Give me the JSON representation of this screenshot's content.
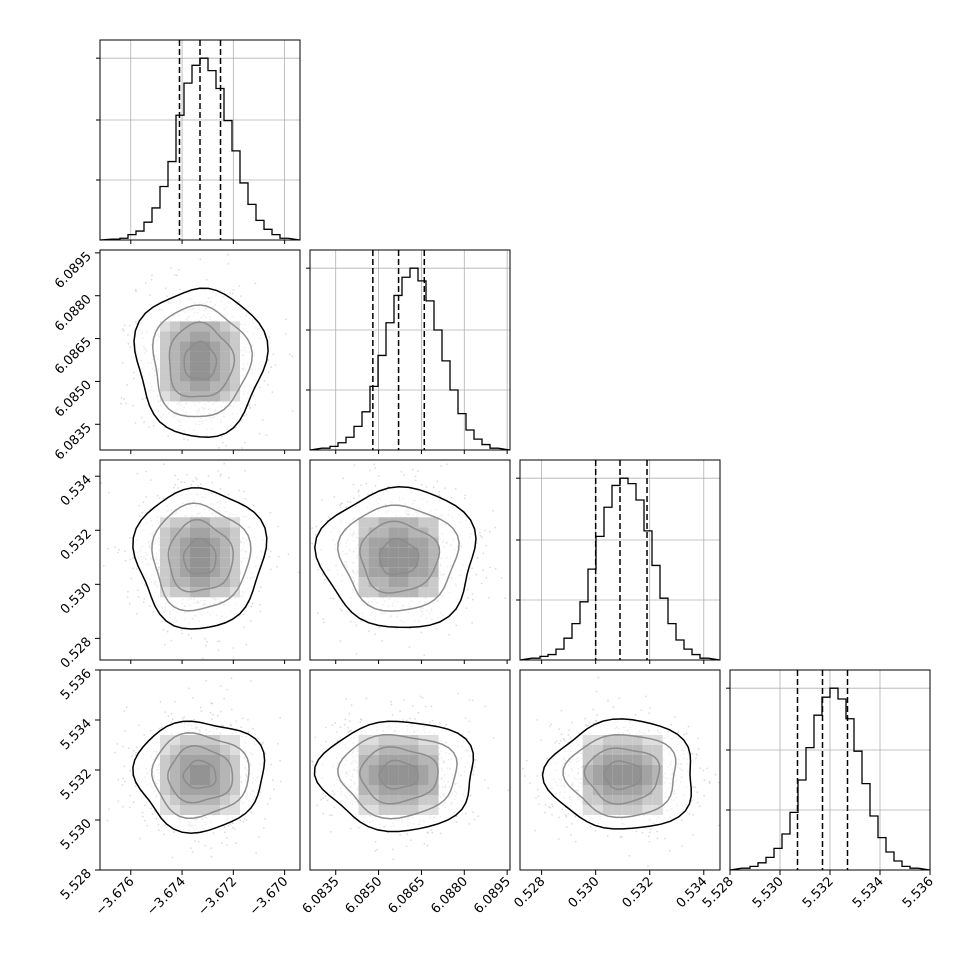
{
  "chart_data": {
    "type": "corner",
    "grid": true,
    "n_params": 4,
    "parameter_labels": [
      "",
      "",
      "",
      ""
    ],
    "colors": {
      "line": "#000000",
      "grid": "#b0b0b0",
      "frame": "#000000",
      "background": "#ffffff"
    },
    "ranges": [
      [
        -3.6772,
        -3.6694
      ],
      [
        6.0826,
        6.0896
      ],
      [
        0.5272,
        0.5346
      ],
      [
        5.528,
        5.536
      ]
    ],
    "ticks": [
      [
        "−3.676",
        "−3.674",
        "−3.672",
        "−3.670"
      ],
      [
        "6.0835",
        "6.0850",
        "6.0865",
        "6.0880",
        "6.0895"
      ],
      [
        "0.528",
        "0.530",
        "0.532",
        "0.534"
      ],
      [
        "5.528",
        "5.530",
        "5.532",
        "5.534",
        "5.536"
      ]
    ],
    "tick_values": [
      [
        -3.676,
        -3.674,
        -3.672,
        -3.67
      ],
      [
        6.0835,
        6.085,
        6.0865,
        6.088,
        6.0895
      ],
      [
        0.528,
        0.53,
        0.532,
        0.534
      ],
      [
        5.528,
        5.53,
        5.532,
        5.534,
        5.536
      ]
    ],
    "y_axis_ticks_rows": [
      1,
      2,
      3
    ],
    "x_axis_ticks_cols": [
      0,
      1,
      2,
      3
    ],
    "quantiles": [
      [
        -3.6741,
        -3.6733,
        -3.6725
      ],
      [
        6.0848,
        6.0857,
        6.0866
      ],
      [
        0.53,
        0.5309,
        0.5319
      ],
      [
        5.5307,
        5.5317,
        5.5327
      ]
    ],
    "histograms": [
      {
        "param": 0,
        "counts": [
          0.5,
          1,
          3,
          5,
          10,
          18,
          30,
          44,
          70,
          88,
          98,
          102,
          95,
          85,
          67,
          50,
          32,
          20,
          11,
          6,
          3,
          1
        ]
      },
      {
        "param": 1,
        "counts": [
          1,
          2,
          4,
          7,
          13,
          21,
          35,
          52,
          70,
          85,
          95,
          100,
          93,
          82,
          66,
          49,
          33,
          20,
          11,
          6,
          3,
          1
        ]
      },
      {
        "param": 2,
        "counts": [
          1,
          2,
          3,
          6,
          12,
          20,
          32,
          50,
          68,
          84,
          96,
          100,
          97,
          88,
          71,
          52,
          34,
          20,
          11,
          6,
          3,
          1
        ]
      },
      {
        "param": 3,
        "counts": [
          1,
          2,
          4,
          7,
          12,
          20,
          32,
          50,
          68,
          86,
          96,
          101,
          95,
          84,
          66,
          48,
          30,
          18,
          10,
          5,
          2,
          1
        ]
      }
    ],
    "panels_2d": [
      {
        "x_param": 0,
        "y_param": 1,
        "mean": [
          -3.6733,
          6.0857
        ],
        "sigma": [
          0.0012,
          0.0013
        ]
      },
      {
        "x_param": 0,
        "y_param": 2,
        "mean": [
          -3.6733,
          0.531
        ],
        "sigma": [
          0.0012,
          0.0013
        ]
      },
      {
        "x_param": 1,
        "y_param": 2,
        "mean": [
          6.0857,
          0.531
        ],
        "sigma": [
          0.0013,
          0.0013
        ]
      },
      {
        "x_param": 0,
        "y_param": 3,
        "mean": [
          -3.6733,
          5.5318
        ],
        "sigma": [
          0.0012,
          0.0011
        ]
      },
      {
        "x_param": 1,
        "y_param": 3,
        "mean": [
          6.0857,
          5.5318
        ],
        "sigma": [
          0.0013,
          0.0011
        ]
      },
      {
        "x_param": 2,
        "y_param": 3,
        "mean": [
          0.531,
          5.5318
        ],
        "sigma": [
          0.0013,
          0.0011
        ]
      }
    ],
    "contour_levels_sigma": [
      0.5,
      1.0,
      1.5,
      2.0
    ]
  }
}
